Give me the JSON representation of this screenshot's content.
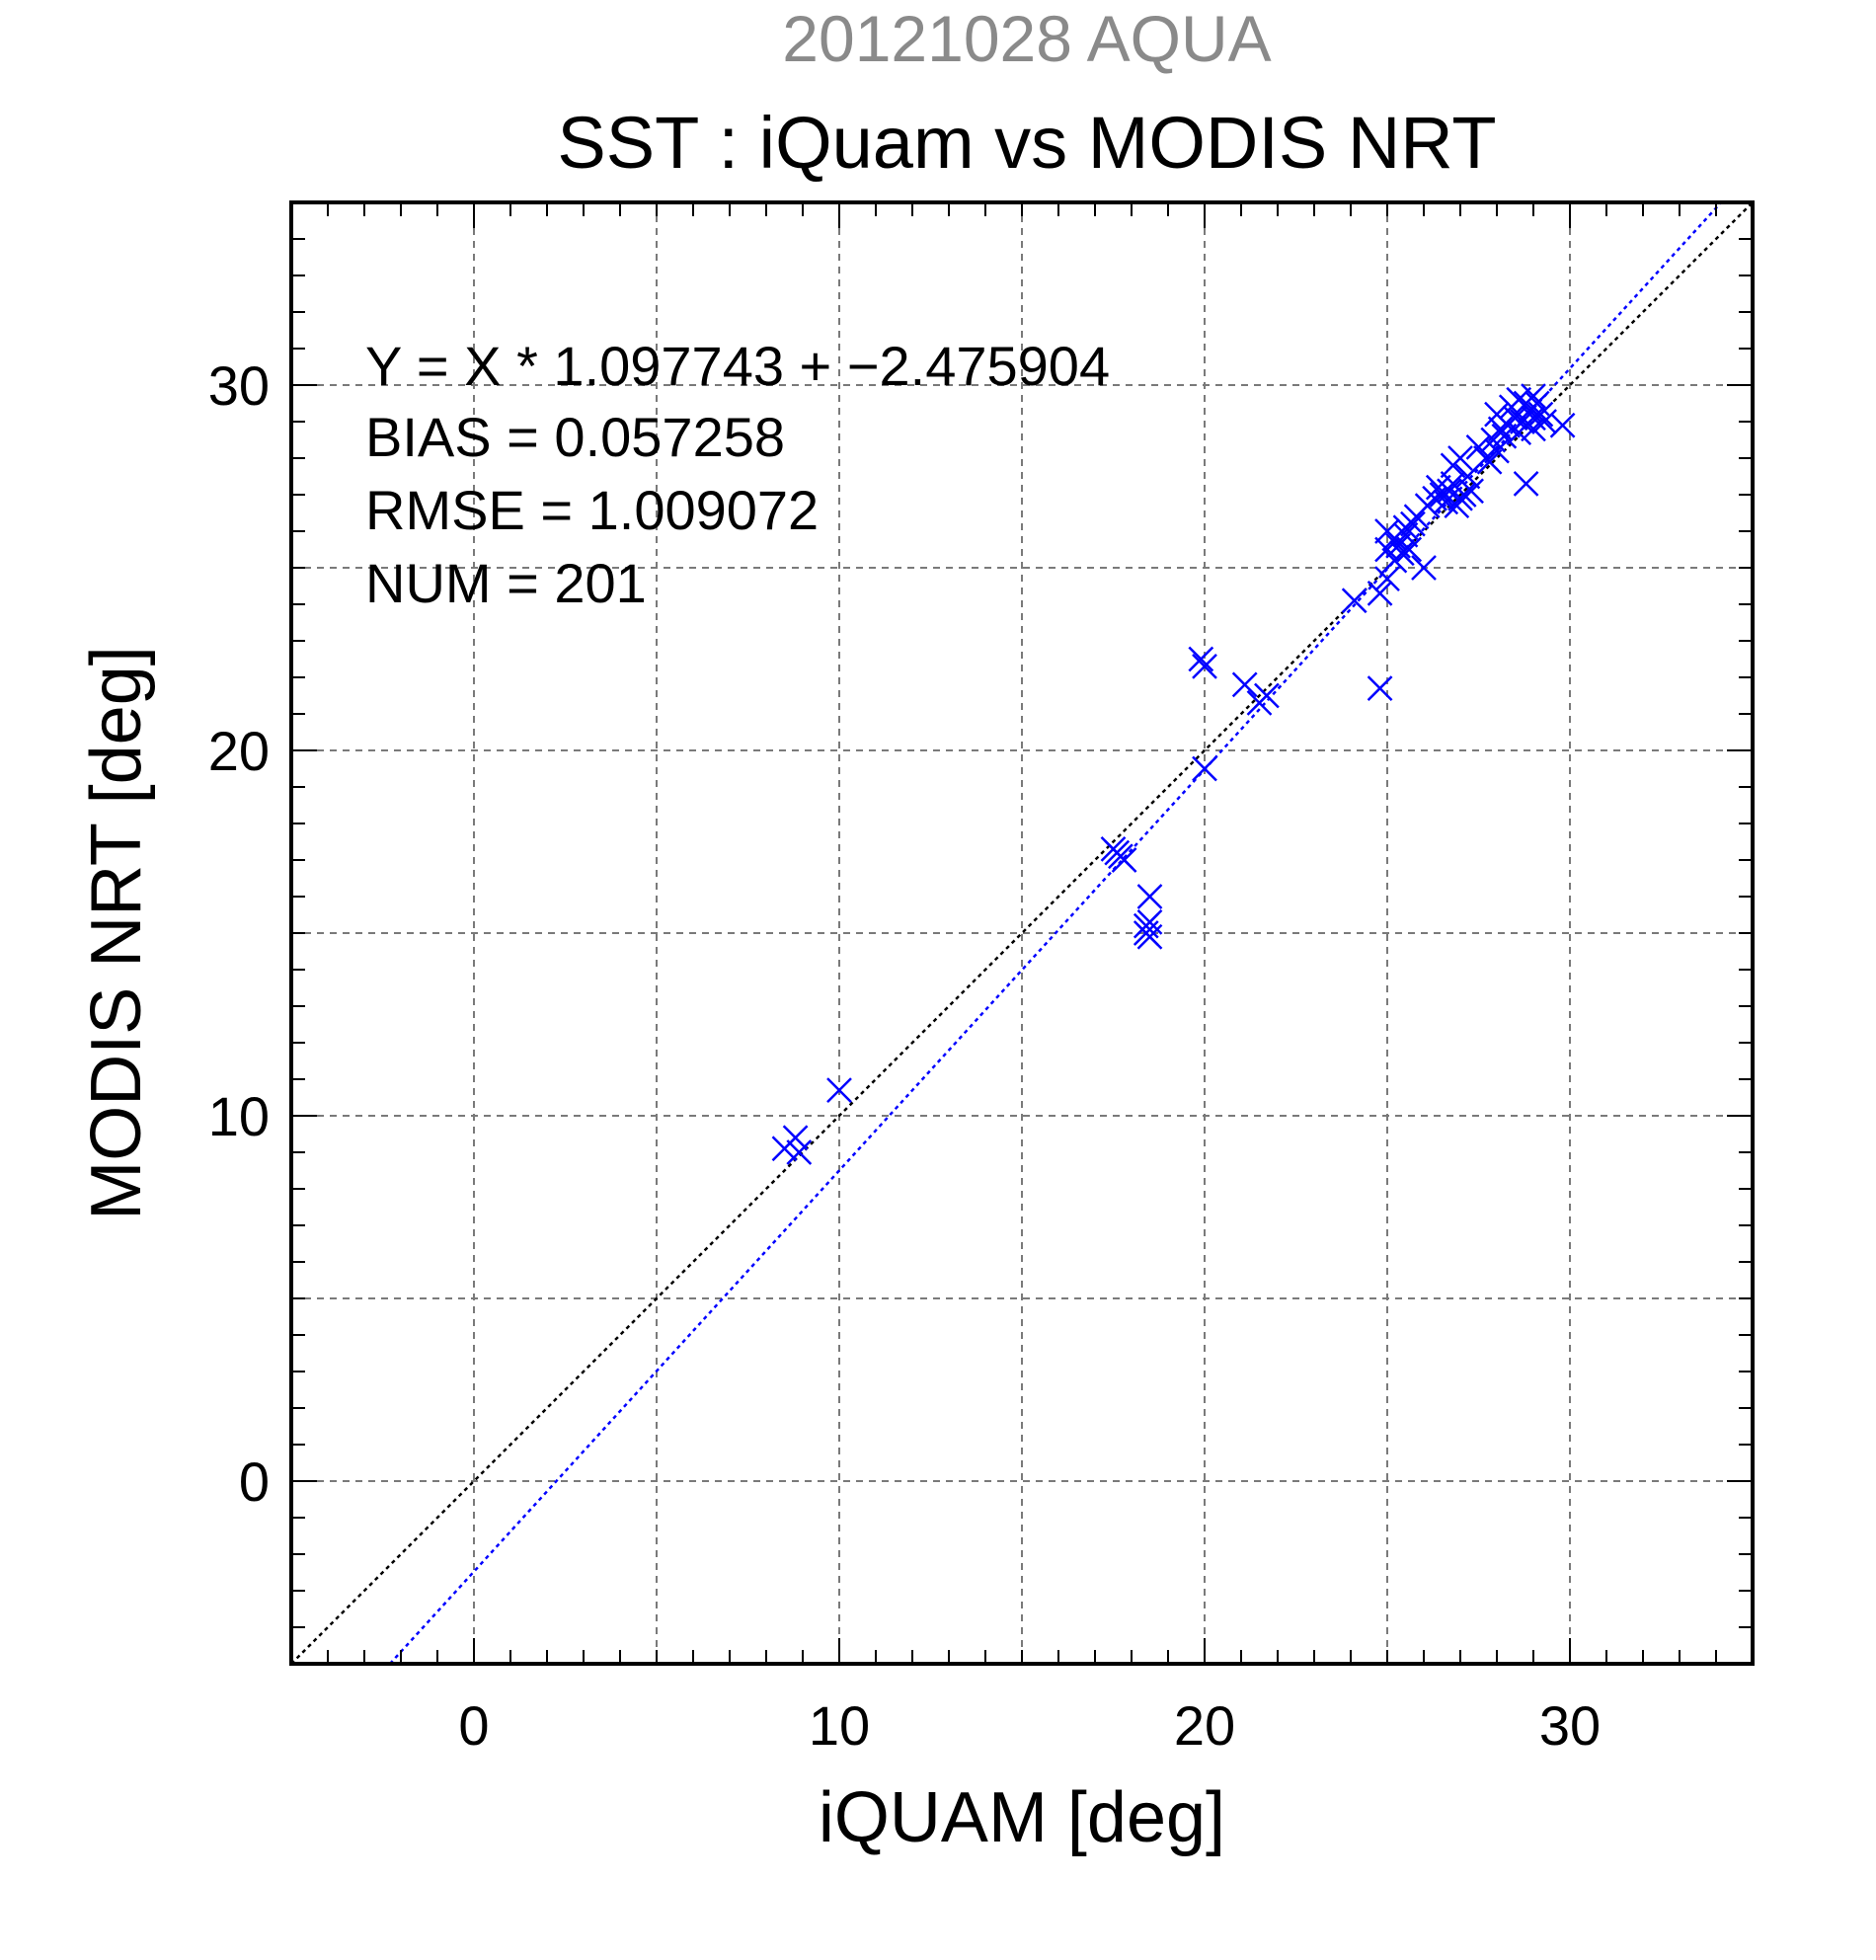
{
  "chart_data": {
    "type": "scatter",
    "supertitle": "20121028 AQUA",
    "title": "SST : iQuam vs MODIS NRT",
    "xlabel": "iQUAM [deg]",
    "ylabel": "MODIS NRT [deg]",
    "xlim": [
      -5,
      35
    ],
    "ylim": [
      -5,
      35
    ],
    "xticks": [
      0,
      10,
      20,
      30
    ],
    "yticks": [
      0,
      10,
      20,
      30
    ],
    "xtick_labels": [
      "0",
      "10",
      "20",
      "30"
    ],
    "ytick_labels": [
      "0",
      "10",
      "20",
      "30"
    ],
    "grid": true,
    "stats": {
      "equation": "Y = X * 1.097743 + −2.475904",
      "bias": "BIAS = 0.057258",
      "rmse": "RMSE = 1.009072",
      "num": "NUM = 201"
    },
    "lines": [
      {
        "kind": "identity",
        "slope": 1,
        "intercept": 0,
        "color": "#000000",
        "style": "dotted"
      },
      {
        "kind": "fit",
        "slope": 1.097743,
        "intercept": -2.475904,
        "color": "#0000ff",
        "style": "dotted"
      }
    ],
    "marker": "x",
    "marker_color": "#0000ff",
    "points": [
      [
        8.5,
        9.1
      ],
      [
        8.8,
        9.4
      ],
      [
        8.9,
        9.0
      ],
      [
        10.0,
        10.7
      ],
      [
        17.5,
        17.3
      ],
      [
        17.7,
        17.1
      ],
      [
        17.8,
        17.0
      ],
      [
        17.6,
        17.2
      ],
      [
        18.4,
        15.0
      ],
      [
        18.5,
        15.3
      ],
      [
        18.5,
        16.0
      ],
      [
        18.4,
        15.2
      ],
      [
        18.5,
        14.9
      ],
      [
        19.9,
        22.5
      ],
      [
        20.0,
        22.3
      ],
      [
        20.0,
        19.5
      ],
      [
        21.1,
        21.8
      ],
      [
        21.5,
        21.3
      ],
      [
        21.7,
        21.5
      ],
      [
        24.1,
        24.1
      ],
      [
        24.8,
        21.7
      ],
      [
        24.8,
        24.3
      ],
      [
        25.0,
        24.7
      ],
      [
        25.0,
        25.5
      ],
      [
        25.0,
        26.0
      ],
      [
        25.2,
        25.8
      ],
      [
        25.2,
        25.2
      ],
      [
        25.3,
        25.6
      ],
      [
        25.4,
        25.4
      ],
      [
        25.5,
        25.9
      ],
      [
        25.5,
        26.1
      ],
      [
        25.6,
        25.5
      ],
      [
        25.7,
        26.2
      ],
      [
        25.8,
        26.4
      ],
      [
        26.0,
        25.0
      ],
      [
        26.1,
        26.7
      ],
      [
        26.3,
        26.9
      ],
      [
        26.4,
        27.2
      ],
      [
        26.5,
        27.0
      ],
      [
        26.6,
        26.8
      ],
      [
        26.7,
        27.1
      ],
      [
        26.8,
        27.3
      ],
      [
        26.9,
        26.7
      ],
      [
        27.0,
        26.9
      ],
      [
        27.1,
        27.0
      ],
      [
        27.2,
        27.5
      ],
      [
        27.0,
        28.0
      ],
      [
        26.8,
        27.8
      ],
      [
        27.3,
        27.1
      ],
      [
        27.5,
        28.3
      ],
      [
        27.7,
        28.0
      ],
      [
        27.8,
        27.9
      ],
      [
        27.9,
        28.5
      ],
      [
        28.0,
        28.2
      ],
      [
        28.1,
        28.8
      ],
      [
        28.0,
        29.2
      ],
      [
        28.2,
        28.6
      ],
      [
        28.3,
        28.9
      ],
      [
        28.4,
        29.4
      ],
      [
        28.5,
        29.1
      ],
      [
        28.6,
        28.7
      ],
      [
        28.6,
        29.6
      ],
      [
        28.7,
        29.0
      ],
      [
        28.8,
        29.5
      ],
      [
        28.8,
        27.3
      ],
      [
        28.9,
        29.3
      ],
      [
        29.0,
        29.1
      ],
      [
        29.0,
        28.8
      ],
      [
        29.1,
        29.5
      ],
      [
        29.2,
        29.2
      ],
      [
        29.3,
        29.0
      ],
      [
        29.0,
        29.7
      ],
      [
        29.8,
        28.9
      ]
    ]
  }
}
